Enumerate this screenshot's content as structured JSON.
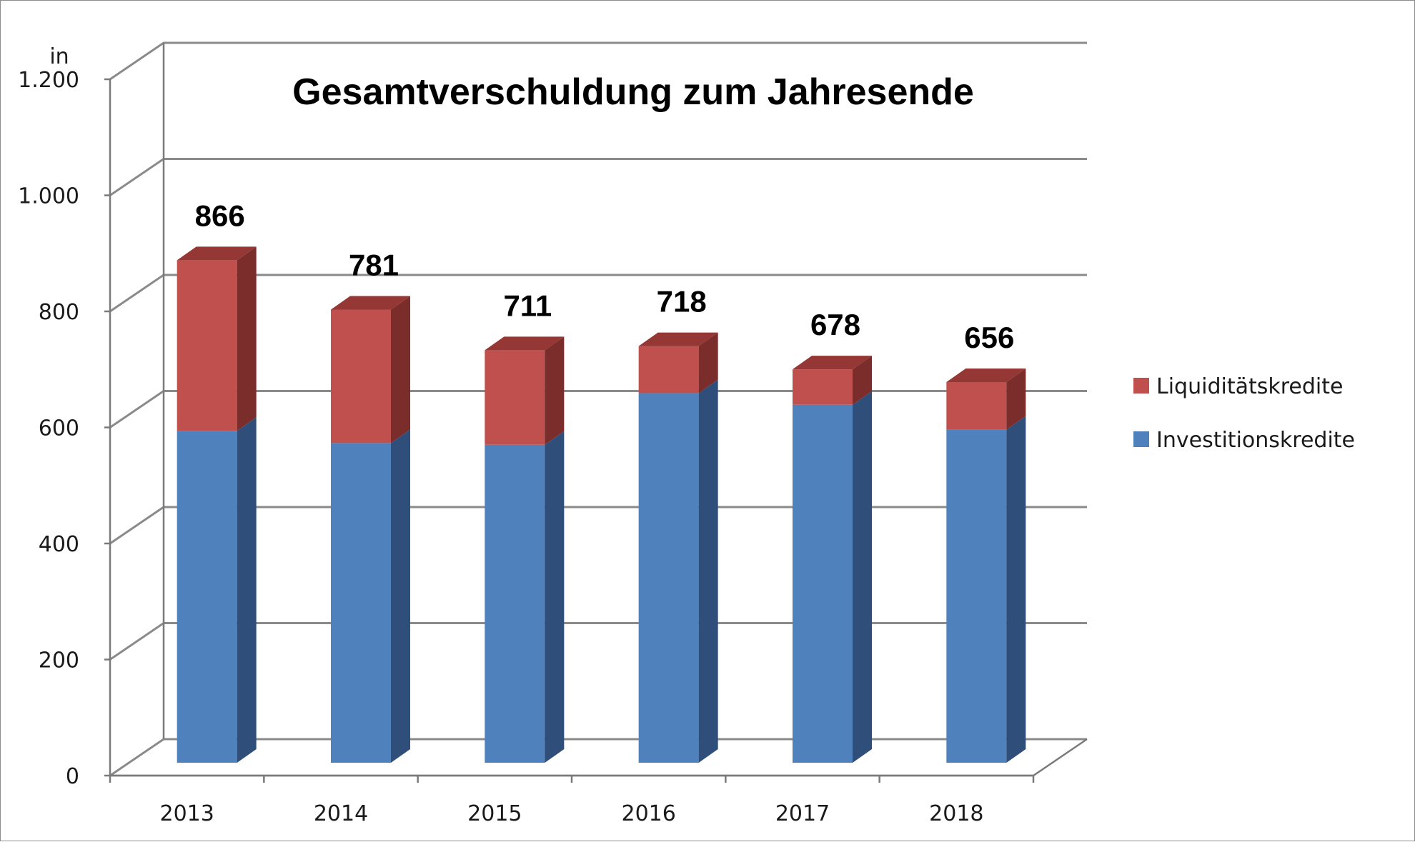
{
  "chart_data": {
    "type": "bar",
    "stacked": true,
    "title": "Gesamtverschuldung zum Jahresende",
    "ylabel": "in",
    "xlabel": "",
    "ylim": [
      0,
      1200
    ],
    "yticks": [
      0,
      200,
      400,
      600,
      800,
      1000,
      1200
    ],
    "ytick_labels": [
      "0",
      "200",
      "400",
      "600",
      "800",
      "1.000",
      "1.200"
    ],
    "categories": [
      "2013",
      "2014",
      "2015",
      "2016",
      "2017",
      "2018"
    ],
    "series": [
      {
        "name": "Investitionskredite",
        "values": [
          572,
          551,
          548,
          637,
          617,
          574
        ],
        "front": "#4f81bd",
        "side": "#2f4f7a",
        "top": "#3d6aa6"
      },
      {
        "name": "Liquiditätskredite",
        "values": [
          294,
          230,
          163,
          81,
          61,
          82
        ],
        "front": "#c0504d",
        "side": "#7a2d2b",
        "top": "#943735"
      }
    ],
    "totals": [
      "866",
      "781",
      "711",
      "718",
      "678",
      "656"
    ],
    "legend": [
      "Liquiditätskredite",
      "Investitionskredite"
    ],
    "legend_position": "right",
    "grid": true
  }
}
